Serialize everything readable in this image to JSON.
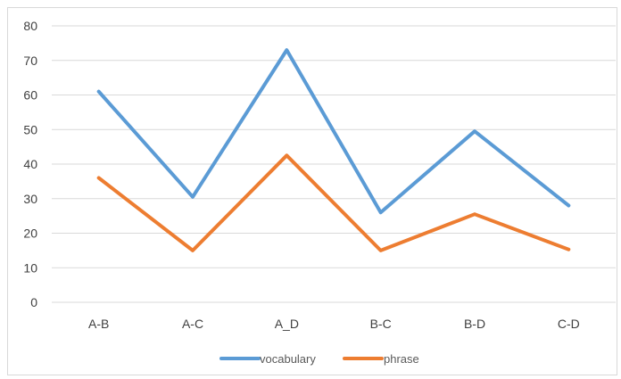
{
  "chart_data": {
    "type": "line",
    "title": "",
    "xlabel": "",
    "ylabel": "",
    "categories": [
      "A-B",
      "A-C",
      "A_D",
      "B-C",
      "B-D",
      "C-D"
    ],
    "ylim": [
      0,
      80
    ],
    "yticks": [
      0,
      10,
      20,
      30,
      40,
      50,
      60,
      70,
      80
    ],
    "grid": true,
    "legend_position": "bottom",
    "series": [
      {
        "name": "vocabulary",
        "color": "#5b9bd5",
        "values": [
          61,
          30.5,
          73,
          26,
          49.5,
          28
        ]
      },
      {
        "name": "phrase",
        "color": "#ed7d31",
        "values": [
          36,
          15,
          42.5,
          15,
          25.5,
          15.3
        ]
      }
    ]
  }
}
